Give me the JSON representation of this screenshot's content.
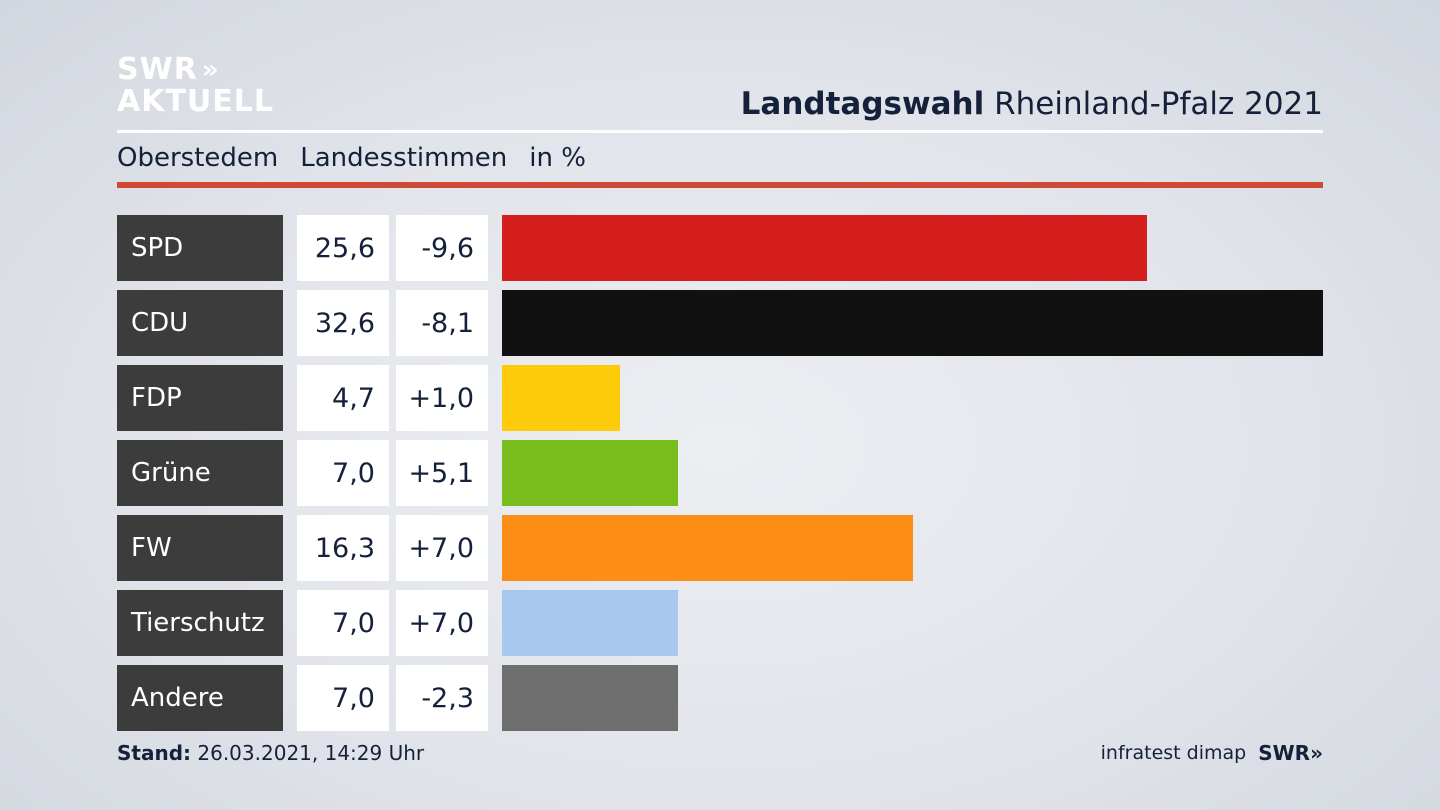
{
  "logo": {
    "line1": "SWR",
    "chevrons": "»",
    "line2": "AKTUELL"
  },
  "header": {
    "title_bold": "Landtagswahl",
    "title_rest": "Rheinland-Pfalz 2021"
  },
  "subheader": {
    "place": "Oberstedem",
    "measure": "Landesstimmen",
    "unit": "in %"
  },
  "footer": {
    "stand_label": "Stand:",
    "stand_value": "26.03.2021, 14:29 Uhr",
    "source": "infratest dimap",
    "brand": "SWR»"
  },
  "chart_data": {
    "type": "bar",
    "orientation": "horizontal",
    "categories": [
      "SPD",
      "CDU",
      "FDP",
      "Grüne",
      "FW",
      "Tierschutz",
      "Andere"
    ],
    "values": [
      25.6,
      32.6,
      4.7,
      7.0,
      16.3,
      7.0,
      7.0
    ],
    "values_label": [
      "25,6",
      "32,6",
      "4,7",
      "7,0",
      "16,3",
      "7,0",
      "7,0"
    ],
    "changes": [
      -9.6,
      -8.1,
      1.0,
      5.1,
      7.0,
      7.0,
      -2.3
    ],
    "changes_label": [
      "-9,6",
      "-8,1",
      "+1,0",
      "+5,1",
      "+7,0",
      "+7,0",
      "-2,3"
    ],
    "colors": [
      "#d51f1f",
      "#111111",
      "#fecb0a",
      "#78bd1c",
      "#fc8e17",
      "#a9c8f0",
      "#6f6f6f"
    ],
    "xlim": [
      0,
      32.6
    ]
  }
}
